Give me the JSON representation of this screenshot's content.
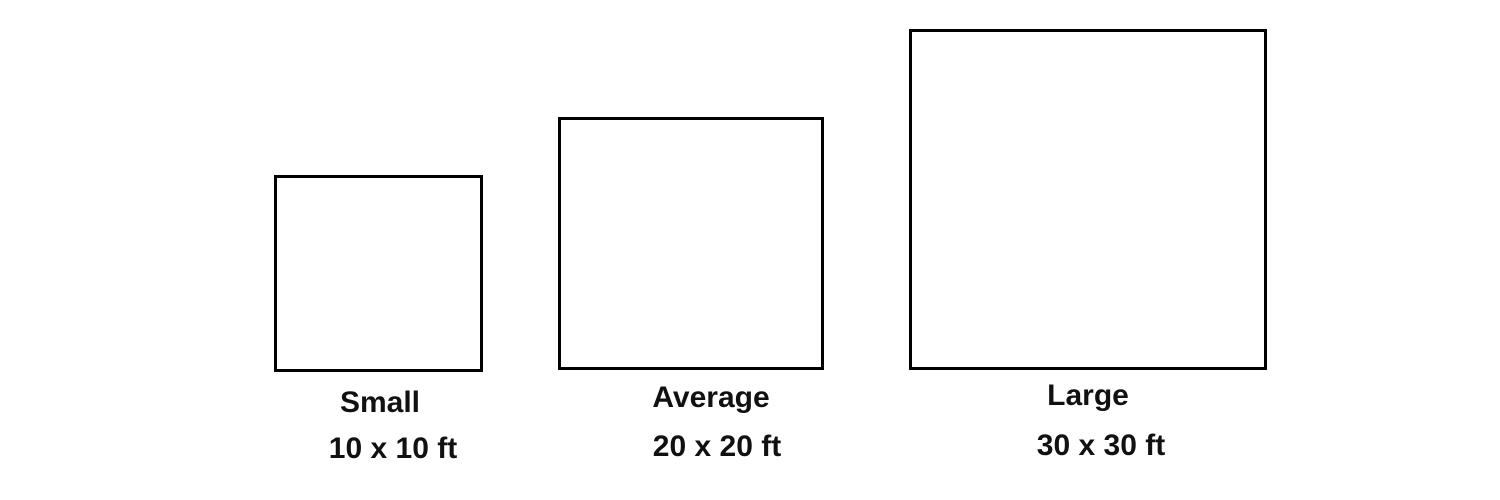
{
  "rooms": [
    {
      "name": "Small",
      "dimensions": "10 x 10 ft"
    },
    {
      "name": "Average",
      "dimensions": "20 x 20 ft"
    },
    {
      "name": "Large",
      "dimensions": "30 x 30 ft"
    }
  ],
  "colors": {
    "outline": "#000000",
    "text": "#111111",
    "background": "#ffffff"
  }
}
